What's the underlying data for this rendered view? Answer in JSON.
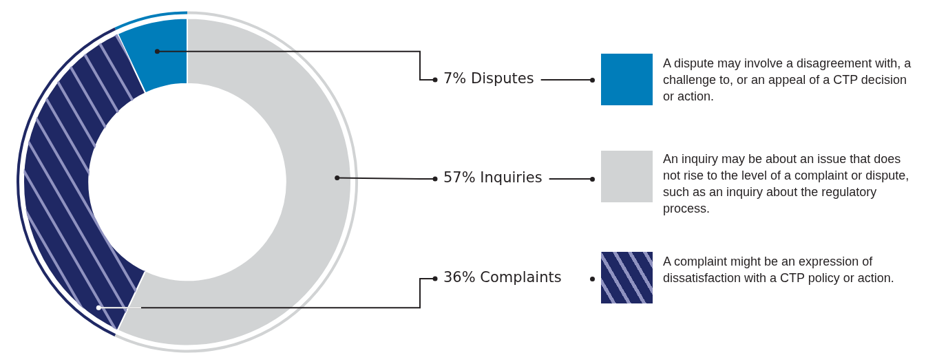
{
  "chart_data": {
    "type": "donut",
    "categories": [
      "Disputes",
      "Inquiries",
      "Complaints"
    ],
    "values": [
      7,
      57,
      36
    ],
    "colors": [
      "#007dba",
      "#d1d3d4",
      "#1f2864"
    ],
    "value_labels": [
      "7%",
      "57%",
      "36%"
    ],
    "annotations": [
      "A dispute may involve a disagreement with, a challenge to, or an appeal of a CTP decision or action.",
      "An inquiry may be about an issue that does not rise to the level of a complaint or dispute, such as an inquiry about the regulatory process.",
      "A complaint might be an expression of dissatisfaction with a CTP policy or action."
    ]
  }
}
